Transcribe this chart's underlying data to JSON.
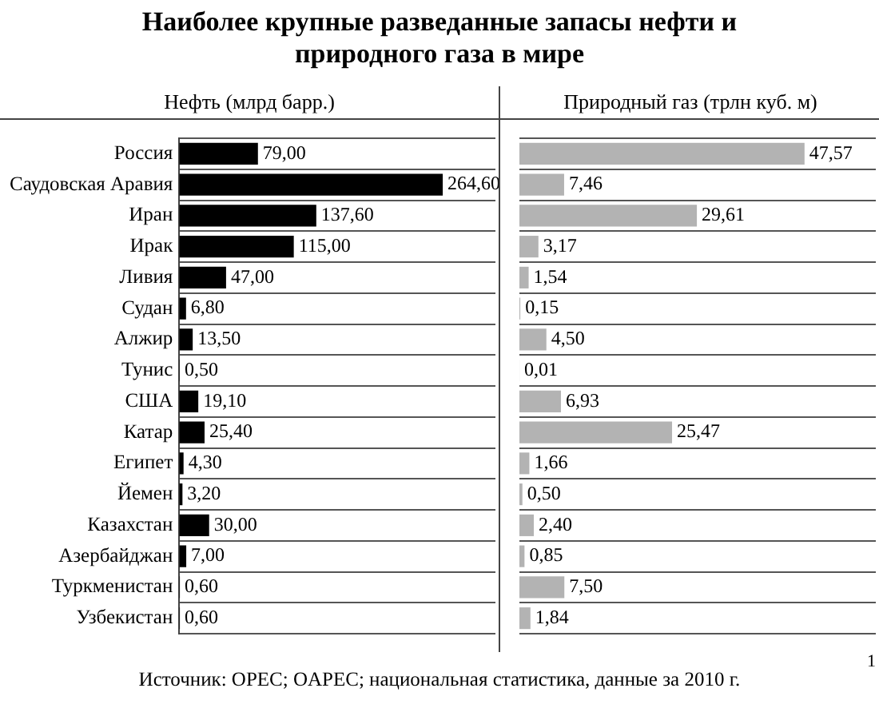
{
  "chart_data": [
    {
      "type": "bar",
      "orientation": "horizontal",
      "title": "Наиболее крупные разведанные запасы нефти и природного газа в мире",
      "subtitle": "Нефть (млрд барр.)",
      "categories": [
        "Россия",
        "Саудовская Аравия",
        "Иран",
        "Ирак",
        "Ливия",
        "Судан",
        "Алжир",
        "Тунис",
        "США",
        "Катар",
        "Египет",
        "Йемен",
        "Казахстан",
        "Азербайджан",
        "Туркменистан",
        "Узбекистан"
      ],
      "values": [
        79,
        264.6,
        137.6,
        115,
        47,
        6.8,
        13.5,
        0.5,
        19.1,
        25.4,
        4.3,
        3.2,
        30,
        7,
        0.6,
        0.6
      ],
      "value_labels": [
        "79,00",
        "264,60",
        "137,60",
        "115,00",
        "47,00",
        "6,80",
        "13,50",
        "0,50",
        "19,10",
        "25,40",
        "4,30",
        "3,20",
        "30,00",
        "7,00",
        "0,60",
        "0,60"
      ],
      "color": "#000000",
      "grid": "y",
      "tick_labels": "y",
      "annotations": [
        "Источник: OPEC; OAPEC; национальная статистика, данные за 2010 г.",
        "1"
      ]
    },
    {
      "type": "bar",
      "orientation": "horizontal",
      "subtitle": "Природный газ (трлн куб. м)",
      "categories": [
        null,
        null,
        null,
        null,
        null,
        null,
        null,
        null,
        null,
        null,
        null,
        null,
        null,
        null,
        null,
        null
      ],
      "values": [
        47.57,
        7.46,
        29.61,
        3.17,
        1.54,
        0.15,
        4.5,
        0.01,
        6.93,
        25.47,
        1.66,
        0.5,
        2.4,
        0.85,
        7.5,
        1.84
      ],
      "value_labels": [
        "47,57",
        "7,46",
        "29,61",
        "3,17",
        "1,54",
        "0,15",
        "4,50",
        "0,01",
        "6,93",
        "25,47",
        "1,66",
        "0,50",
        "2,40",
        "0,85",
        "7,50",
        "1,84"
      ],
      "color": "#b3b3b3",
      "grid": "y",
      "tick_labels": false
    }
  ]
}
